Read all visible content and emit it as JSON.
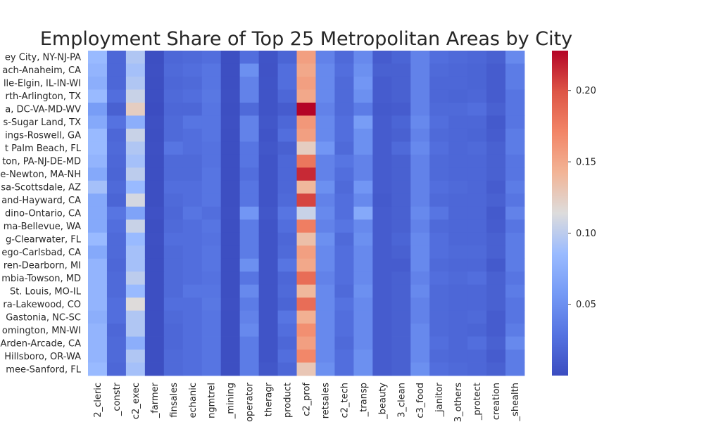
{
  "chart_data": {
    "type": "heatmap",
    "title": "Employment Share of Top 25 Metropolitan Areas by City",
    "xlabel": "",
    "ylabel": "",
    "colormap": "coolwarm",
    "vmin": 0.0,
    "vmax": 0.228,
    "colorbar_ticks": [
      "0.05",
      "0.10",
      "0.15",
      "0.20"
    ],
    "colorbar_tick_values": [
      0.05,
      0.1,
      0.15,
      0.2
    ],
    "rows": [
      "ey City, NY-NJ-PA",
      "ach-Anaheim, CA",
      "lle-Elgin, IL-IN-WI",
      "rth-Arlington, TX",
      "a, DC-VA-MD-WV",
      "s-Sugar Land, TX",
      "ings-Roswell, GA",
      "t Palm Beach, FL",
      "ton, PA-NJ-DE-MD",
      "e-Newton, MA-NH",
      "sa-Scottsdale, AZ",
      "and-Hayward, CA",
      "dino-Ontario, CA",
      "ma-Bellevue, WA",
      "g-Clearwater, FL",
      "ego-Carlsbad, CA",
      "ren-Dearborn, MI",
      "mbia-Towson, MD",
      "St. Louis, MO-IL",
      "ra-Lakewood, CO",
      "Gastonia, NC-SC",
      "omington, MN-WI",
      "Arden-Arcade, CA",
      "Hillsboro, OR-WA",
      "mee-Sanford, FL"
    ],
    "columns": [
      "2_cleric",
      "_constr",
      "c2_exec",
      "_farmer",
      "finsales",
      "echanic",
      "ngmtrel",
      "_mining",
      "operator",
      "theragr",
      "product",
      "c2_prof",
      "retsales",
      "c2_tech",
      "_transp",
      "_beauty",
      "3_clean",
      "c3_food",
      "_janitor",
      "3_others",
      "_protect",
      "creation",
      "_shealth"
    ],
    "values": [
      [
        0.085,
        0.02,
        0.095,
        0.002,
        0.02,
        0.022,
        0.025,
        0.002,
        0.025,
        0.006,
        0.018,
        0.155,
        0.04,
        0.022,
        0.045,
        0.012,
        0.018,
        0.04,
        0.025,
        0.022,
        0.02,
        0.015,
        0.045
      ],
      [
        0.08,
        0.02,
        0.09,
        0.003,
        0.022,
        0.025,
        0.03,
        0.002,
        0.05,
        0.005,
        0.025,
        0.15,
        0.045,
        0.025,
        0.05,
        0.015,
        0.015,
        0.04,
        0.022,
        0.02,
        0.018,
        0.012,
        0.035
      ],
      [
        0.075,
        0.02,
        0.095,
        0.002,
        0.02,
        0.022,
        0.03,
        0.002,
        0.04,
        0.006,
        0.025,
        0.155,
        0.045,
        0.022,
        0.055,
        0.012,
        0.015,
        0.04,
        0.02,
        0.02,
        0.018,
        0.012,
        0.035
      ],
      [
        0.085,
        0.025,
        0.105,
        0.002,
        0.022,
        0.025,
        0.032,
        0.003,
        0.04,
        0.006,
        0.02,
        0.15,
        0.045,
        0.022,
        0.05,
        0.012,
        0.015,
        0.04,
        0.02,
        0.018,
        0.02,
        0.012,
        0.03
      ],
      [
        0.06,
        0.015,
        0.125,
        0.001,
        0.02,
        0.02,
        0.03,
        0.002,
        0.022,
        0.006,
        0.012,
        0.228,
        0.04,
        0.022,
        0.035,
        0.01,
        0.012,
        0.04,
        0.022,
        0.022,
        0.025,
        0.015,
        0.03
      ],
      [
        0.07,
        0.028,
        0.075,
        0.003,
        0.022,
        0.03,
        0.03,
        0.003,
        0.04,
        0.008,
        0.02,
        0.16,
        0.045,
        0.025,
        0.06,
        0.012,
        0.018,
        0.045,
        0.025,
        0.02,
        0.02,
        0.01,
        0.03
      ],
      [
        0.085,
        0.02,
        0.105,
        0.002,
        0.022,
        0.025,
        0.03,
        0.002,
        0.04,
        0.006,
        0.025,
        0.155,
        0.045,
        0.025,
        0.05,
        0.012,
        0.015,
        0.04,
        0.022,
        0.02,
        0.018,
        0.012,
        0.035
      ],
      [
        0.085,
        0.022,
        0.095,
        0.003,
        0.03,
        0.025,
        0.028,
        0.002,
        0.03,
        0.008,
        0.015,
        0.125,
        0.055,
        0.022,
        0.05,
        0.012,
        0.022,
        0.045,
        0.025,
        0.02,
        0.022,
        0.015,
        0.035
      ],
      [
        0.08,
        0.02,
        0.09,
        0.002,
        0.022,
        0.022,
        0.028,
        0.002,
        0.03,
        0.006,
        0.02,
        0.18,
        0.04,
        0.03,
        0.04,
        0.012,
        0.015,
        0.04,
        0.022,
        0.02,
        0.02,
        0.015,
        0.03
      ],
      [
        0.07,
        0.018,
        0.1,
        0.002,
        0.022,
        0.022,
        0.03,
        0.002,
        0.025,
        0.006,
        0.02,
        0.215,
        0.04,
        0.025,
        0.04,
        0.012,
        0.015,
        0.04,
        0.022,
        0.02,
        0.02,
        0.015,
        0.03
      ],
      [
        0.09,
        0.022,
        0.085,
        0.002,
        0.025,
        0.025,
        0.03,
        0.002,
        0.03,
        0.006,
        0.02,
        0.14,
        0.05,
        0.022,
        0.055,
        0.012,
        0.015,
        0.04,
        0.025,
        0.022,
        0.02,
        0.012,
        0.035
      ],
      [
        0.07,
        0.018,
        0.11,
        0.002,
        0.022,
        0.025,
        0.03,
        0.002,
        0.03,
        0.006,
        0.022,
        0.205,
        0.04,
        0.025,
        0.045,
        0.01,
        0.015,
        0.04,
        0.022,
        0.02,
        0.02,
        0.015,
        0.03
      ],
      [
        0.07,
        0.03,
        0.065,
        0.004,
        0.02,
        0.03,
        0.025,
        0.003,
        0.055,
        0.008,
        0.03,
        0.105,
        0.045,
        0.025,
        0.07,
        0.012,
        0.015,
        0.045,
        0.03,
        0.02,
        0.02,
        0.01,
        0.04
      ],
      [
        0.07,
        0.025,
        0.105,
        0.002,
        0.022,
        0.025,
        0.03,
        0.002,
        0.035,
        0.006,
        0.025,
        0.175,
        0.04,
        0.03,
        0.045,
        0.012,
        0.015,
        0.04,
        0.022,
        0.02,
        0.02,
        0.012,
        0.03
      ],
      [
        0.085,
        0.022,
        0.085,
        0.003,
        0.025,
        0.025,
        0.028,
        0.002,
        0.035,
        0.006,
        0.02,
        0.135,
        0.05,
        0.022,
        0.05,
        0.012,
        0.018,
        0.045,
        0.025,
        0.02,
        0.02,
        0.015,
        0.035
      ],
      [
        0.07,
        0.022,
        0.09,
        0.002,
        0.022,
        0.025,
        0.03,
        0.002,
        0.035,
        0.006,
        0.022,
        0.155,
        0.045,
        0.025,
        0.045,
        0.012,
        0.015,
        0.045,
        0.025,
        0.022,
        0.022,
        0.015,
        0.035
      ],
      [
        0.08,
        0.02,
        0.09,
        0.002,
        0.022,
        0.025,
        0.03,
        0.002,
        0.05,
        0.006,
        0.03,
        0.15,
        0.045,
        0.025,
        0.045,
        0.012,
        0.012,
        0.045,
        0.022,
        0.02,
        0.02,
        0.01,
        0.035
      ],
      [
        0.08,
        0.022,
        0.1,
        0.002,
        0.022,
        0.025,
        0.028,
        0.002,
        0.03,
        0.006,
        0.02,
        0.185,
        0.04,
        0.025,
        0.045,
        0.012,
        0.015,
        0.04,
        0.025,
        0.022,
        0.025,
        0.015,
        0.03
      ],
      [
        0.08,
        0.022,
        0.085,
        0.002,
        0.022,
        0.03,
        0.03,
        0.002,
        0.045,
        0.006,
        0.022,
        0.14,
        0.045,
        0.022,
        0.05,
        0.012,
        0.015,
        0.045,
        0.022,
        0.02,
        0.02,
        0.015,
        0.035
      ],
      [
        0.08,
        0.025,
        0.115,
        0.002,
        0.025,
        0.025,
        0.032,
        0.003,
        0.035,
        0.006,
        0.018,
        0.185,
        0.045,
        0.028,
        0.045,
        0.012,
        0.015,
        0.04,
        0.022,
        0.02,
        0.02,
        0.015,
        0.03
      ],
      [
        0.075,
        0.025,
        0.095,
        0.002,
        0.022,
        0.025,
        0.03,
        0.002,
        0.04,
        0.006,
        0.03,
        0.145,
        0.045,
        0.025,
        0.045,
        0.012,
        0.015,
        0.04,
        0.022,
        0.02,
        0.022,
        0.012,
        0.03
      ],
      [
        0.08,
        0.02,
        0.095,
        0.002,
        0.02,
        0.025,
        0.03,
        0.002,
        0.045,
        0.006,
        0.025,
        0.165,
        0.045,
        0.025,
        0.045,
        0.012,
        0.015,
        0.045,
        0.022,
        0.02,
        0.018,
        0.012,
        0.035
      ],
      [
        0.08,
        0.022,
        0.075,
        0.002,
        0.02,
        0.025,
        0.03,
        0.002,
        0.035,
        0.006,
        0.02,
        0.155,
        0.045,
        0.022,
        0.045,
        0.012,
        0.015,
        0.045,
        0.025,
        0.02,
        0.025,
        0.015,
        0.045
      ],
      [
        0.08,
        0.022,
        0.095,
        0.002,
        0.022,
        0.025,
        0.03,
        0.002,
        0.035,
        0.006,
        0.025,
        0.17,
        0.045,
        0.025,
        0.05,
        0.012,
        0.015,
        0.045,
        0.022,
        0.02,
        0.02,
        0.012,
        0.035
      ],
      [
        0.085,
        0.02,
        0.09,
        0.002,
        0.022,
        0.025,
        0.03,
        0.002,
        0.035,
        0.008,
        0.02,
        0.13,
        0.05,
        0.025,
        0.05,
        0.012,
        0.015,
        0.05,
        0.025,
        0.022,
        0.02,
        0.015,
        0.035
      ]
    ]
  }
}
